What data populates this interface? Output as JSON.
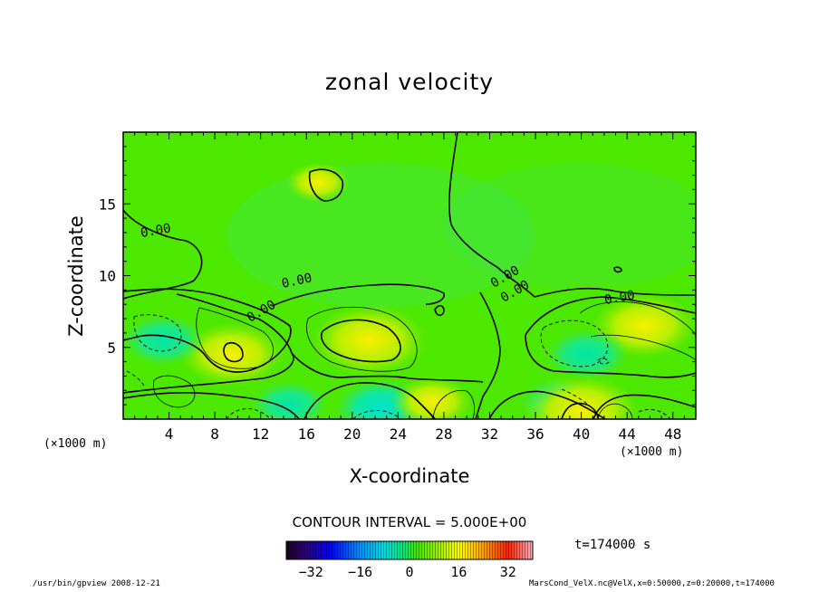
{
  "title": "zonal velocity",
  "x_unit": "(×1000 m)",
  "contour_interval": "CONTOUR INTERVAL = 5.000E+00",
  "time_label": "t=174000 s",
  "footer_left": "/usr/bin/gpview   2008-12-21",
  "footer_right": "MarsCond_VelX.nc@VelX,x=0:50000,z=0:20000,t=174000",
  "colors": {
    "background_field": "#4de800",
    "axis": "#000000"
  },
  "chart_data": {
    "type": "heatmap",
    "title": "zonal velocity",
    "xlabel": "X-coordinate",
    "ylabel": "Z-coordinate",
    "x_unit": "(×1000 m)",
    "xlim": [
      0,
      50
    ],
    "ylim": [
      0,
      20
    ],
    "x_ticks": [
      "4",
      "8",
      "12",
      "16",
      "20",
      "24",
      "28",
      "32",
      "36",
      "40",
      "44",
      "48"
    ],
    "y_ticks": [
      "5",
      "10",
      "15"
    ],
    "contour_labels": [
      "0.00",
      "0.00",
      "0.00",
      "0.00",
      "0.00",
      "0.00"
    ],
    "contour_interval": 5.0,
    "colorbar": {
      "range": [
        -40,
        40
      ],
      "ticks": [
        "-32",
        "-16",
        "0",
        "16",
        "32"
      ]
    },
    "features": [
      {
        "x": 21.5,
        "z": 5.5,
        "sign": "positive",
        "peak": 12
      },
      {
        "x": 9.5,
        "z": 4.5,
        "sign": "positive",
        "peak": 10
      },
      {
        "x": 45.5,
        "z": 6.5,
        "sign": "positive",
        "peak": 10
      },
      {
        "x": 3.5,
        "z": 5.5,
        "sign": "negative",
        "peak": -6
      },
      {
        "x": 40.5,
        "z": 4.5,
        "sign": "negative",
        "peak": -6
      },
      {
        "x": 22.5,
        "z": 0.8,
        "sign": "negative",
        "peak": -8
      },
      {
        "x": 14.5,
        "z": 1.0,
        "sign": "negative",
        "peak": -5
      },
      {
        "x": 38.0,
        "z": 1.2,
        "sign": "negative",
        "peak": -5
      },
      {
        "x": 40.0,
        "z": 0.6,
        "sign": "positive",
        "peak": 12
      },
      {
        "x": 27.0,
        "z": 1.2,
        "sign": "positive",
        "peak": 6
      },
      {
        "x": 17.0,
        "z": 16.5,
        "sign": "positive",
        "peak": 3
      }
    ]
  }
}
